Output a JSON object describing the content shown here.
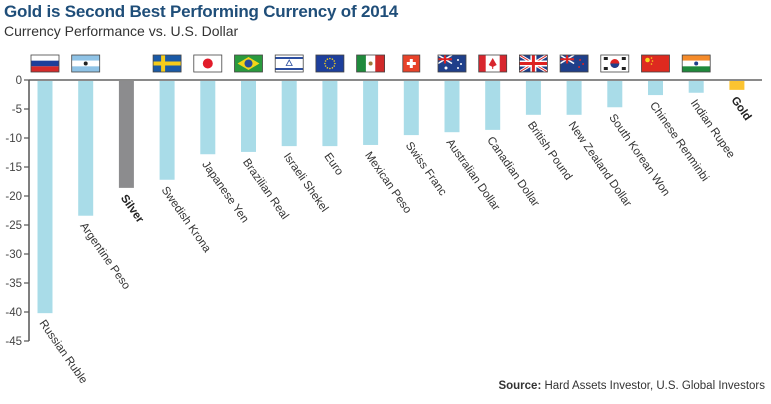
{
  "header": {
    "title": "Gold is Second Best Performing Currency of 2014",
    "subtitle": "Currency Performance vs. U.S. Dollar"
  },
  "footer": {
    "source_label": "Source:",
    "source_text": " Hard Assets Investor, U.S. Global Investors"
  },
  "colors": {
    "currency": "#a9dce8",
    "silver": "#8c8c8e",
    "gold": "#fcc431",
    "title": "#1f4e79",
    "axis": "#7a7a7a"
  },
  "chart_data": {
    "type": "bar",
    "title": "Gold is Second Best Performing Currency of 2014",
    "subtitle": "Currency Performance vs. U.S. Dollar",
    "xlabel": "",
    "ylabel": "",
    "ylim": [
      -45,
      0
    ],
    "yticks": [
      0,
      -5,
      -10,
      -15,
      -20,
      -25,
      -30,
      -35,
      -40,
      -45
    ],
    "grid": false,
    "legend": "none",
    "categories": [
      "Russian Ruble",
      "Argentine Peso",
      "Silver",
      "Swedish Krona",
      "Japanese Yen",
      "Brazilian Real",
      "Israeli Shekel",
      "Euro",
      "Mexican Peso",
      "Swiss Franc",
      "Australian Dollar",
      "Canadian Dollar",
      "British Pound",
      "New Zealand Dollar",
      "South Korean Won",
      "Chinese Renminbi",
      "Indian Rupee",
      "Gold"
    ],
    "values": [
      -40.2,
      -23.4,
      -18.6,
      -17.2,
      -12.8,
      -12.4,
      -11.4,
      -11.4,
      -11.2,
      -9.5,
      -9.0,
      -8.6,
      -6.0,
      -6.0,
      -4.7,
      -2.6,
      -2.2,
      -1.7
    ],
    "bar_kinds": [
      "currency",
      "currency",
      "silver",
      "currency",
      "currency",
      "currency",
      "currency",
      "currency",
      "currency",
      "currency",
      "currency",
      "currency",
      "currency",
      "currency",
      "currency",
      "currency",
      "currency",
      "gold"
    ],
    "flags": [
      "russia",
      "argentina",
      "",
      "sweden",
      "japan",
      "brazil",
      "israel",
      "eu",
      "mexico",
      "switzerland",
      "australia",
      "canada",
      "uk",
      "new-zealand",
      "south-korea",
      "china",
      "india",
      ""
    ]
  }
}
